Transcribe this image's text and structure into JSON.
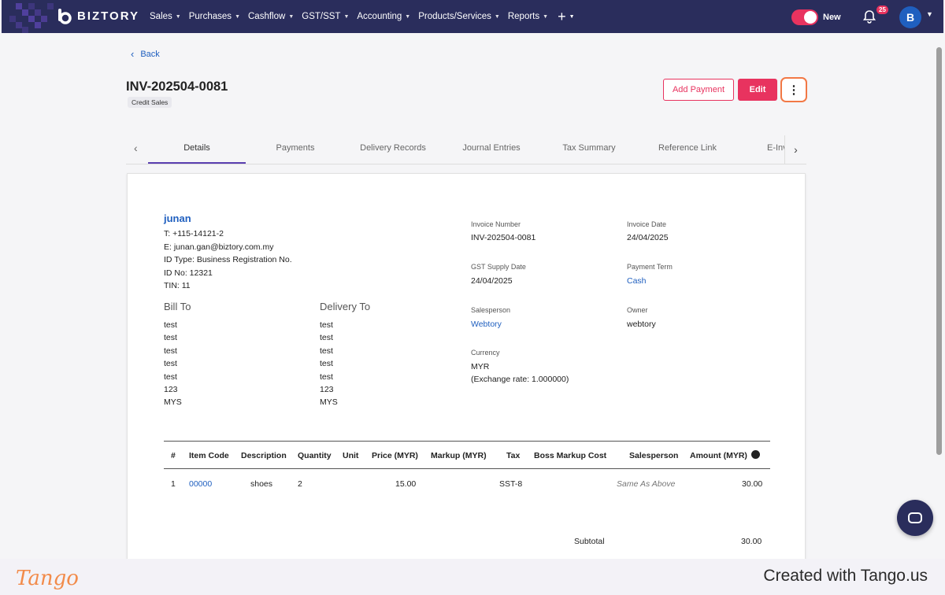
{
  "app": {
    "brand": "BIZTORY",
    "accent": "#e8335f",
    "nav_bg": "#2a2d5c",
    "link": "#1f5fbf"
  },
  "nav": {
    "items": [
      {
        "label": "Sales"
      },
      {
        "label": "Purchases"
      },
      {
        "label": "Cashflow"
      },
      {
        "label": "GST/SST"
      },
      {
        "label": "Accounting"
      },
      {
        "label": "Products/Services"
      },
      {
        "label": "Reports"
      }
    ],
    "plus_icon": "plus-icon",
    "toggle_label": "New",
    "notification_count": "25",
    "avatar_initial": "B"
  },
  "header": {
    "back_label": "Back",
    "invoice_title": "INV-202504-0081",
    "tag": "Credit Sales",
    "add_payment_label": "Add Payment",
    "edit_label": "Edit",
    "more_icon": "⋮"
  },
  "tabs": [
    "Details",
    "Payments",
    "Delivery Records",
    "Journal Entries",
    "Tax Summary",
    "Reference Link",
    "E-Inv"
  ],
  "customer": {
    "name": "junan",
    "phone": "T: +115-14121-2",
    "email": "E: junan.gan@biztory.com.my",
    "id_type": "ID Type: Business Registration No.",
    "id_no": "ID No: 12321",
    "tin": "TIN: 11"
  },
  "bill_to": {
    "heading": "Bill To",
    "lines": [
      "test",
      "test",
      "test",
      "test",
      "test",
      "123",
      "MYS"
    ]
  },
  "delivery_to": {
    "heading": "Delivery To",
    "lines": [
      "test",
      "test",
      "test",
      "test",
      "test",
      "123",
      "MYS"
    ]
  },
  "fields": {
    "invoice_number_label": "Invoice Number",
    "invoice_number": "INV-202504-0081",
    "invoice_date_label": "Invoice Date",
    "invoice_date": "24/04/2025",
    "gst_date_label": "GST Supply Date",
    "gst_date": "24/04/2025",
    "payment_term_label": "Payment Term",
    "payment_term": "Cash",
    "salesperson_label": "Salesperson",
    "salesperson": "Webtory",
    "owner_label": "Owner",
    "owner": "webtory",
    "currency_label": "Currency",
    "currency": "MYR",
    "exchange_rate": "(Exchange rate: 1.000000)"
  },
  "items_table": {
    "headers": [
      "#",
      "Item Code",
      "Description",
      "Quantity",
      "Unit",
      "Price (MYR)",
      "Markup (MYR)",
      "Tax",
      "Boss Markup Cost",
      "Salesperson",
      "Amount (MYR)"
    ],
    "rows": [
      {
        "no": "1",
        "code": "00000",
        "description": "shoes",
        "quantity": "2",
        "unit": "",
        "price": "15.00",
        "markup": "",
        "tax": "SST-8",
        "boss_markup": "",
        "salesperson": "Same As Above",
        "amount": "30.00"
      }
    ],
    "subtotal_label": "Subtotal",
    "subtotal": "30.00"
  },
  "footer": {
    "logo": "Tango",
    "text": "Created with Tango.us"
  }
}
